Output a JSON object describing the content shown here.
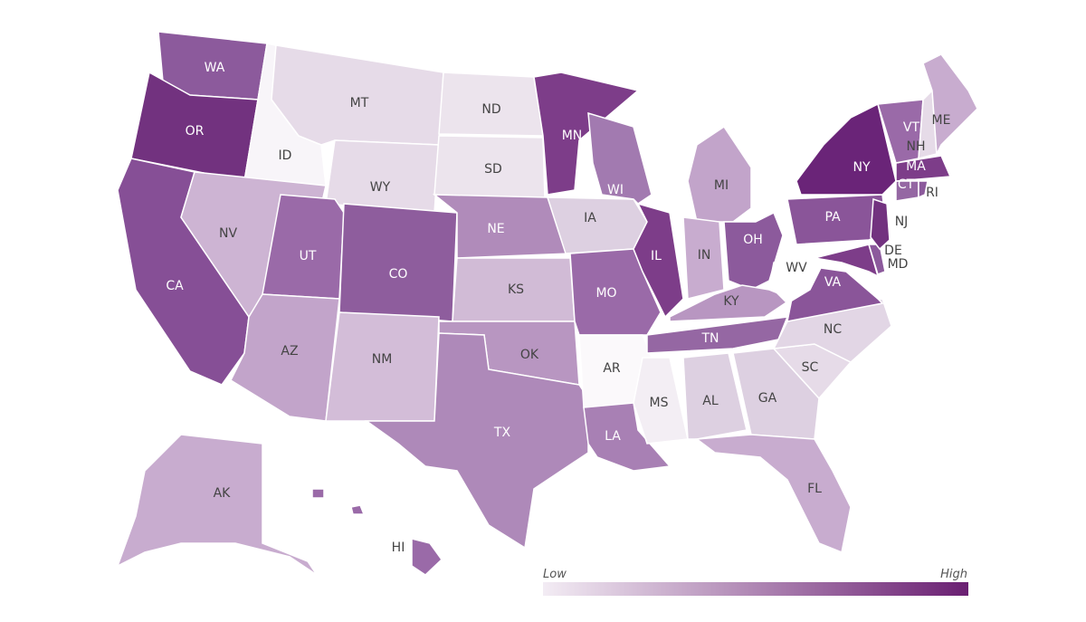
{
  "states": [
    {
      "abbr": "WA",
      "color": "#8c5a9c"
    },
    {
      "abbr": "OR",
      "color": "#72327f"
    },
    {
      "abbr": "CA",
      "color": "#864f96"
    },
    {
      "abbr": "ID",
      "color": "#f8f5f9"
    },
    {
      "abbr": "NV",
      "color": "#cdb4d3"
    },
    {
      "abbr": "MT",
      "color": "#e6dbe8"
    },
    {
      "abbr": "WY",
      "color": "#e6dbe8"
    },
    {
      "abbr": "UT",
      "color": "#9a6aa8"
    },
    {
      "abbr": "AZ",
      "color": "#c2a4ca"
    },
    {
      "abbr": "CO",
      "color": "#8e5d9d"
    },
    {
      "abbr": "NM",
      "color": "#d3bdd8"
    },
    {
      "abbr": "ND",
      "color": "#ece4ed"
    },
    {
      "abbr": "SD",
      "color": "#ece4ed"
    },
    {
      "abbr": "NE",
      "color": "#b08bba"
    },
    {
      "abbr": "KS",
      "color": "#d1bbd6"
    },
    {
      "abbr": "OK",
      "color": "#b896c1"
    },
    {
      "abbr": "TX",
      "color": "#ae89b9"
    },
    {
      "abbr": "MN",
      "color": "#7d3d89"
    },
    {
      "abbr": "IA",
      "color": "#ddd0e1"
    },
    {
      "abbr": "MO",
      "color": "#9a6aa8"
    },
    {
      "abbr": "AR",
      "color": "#fbf9fb"
    },
    {
      "abbr": "LA",
      "color": "#a880b4"
    },
    {
      "abbr": "WI",
      "color": "#a27ab0"
    },
    {
      "abbr": "IL",
      "color": "#7d3d89"
    },
    {
      "abbr": "MI",
      "color": "#c2a4ca"
    },
    {
      "abbr": "IN",
      "color": "#c8accf"
    },
    {
      "abbr": "OH",
      "color": "#8c5a9c"
    },
    {
      "abbr": "KY",
      "color": "#b896c1"
    },
    {
      "abbr": "TN",
      "color": "#9567a3"
    },
    {
      "abbr": "MS",
      "color": "#f3eef4"
    },
    {
      "abbr": "AL",
      "color": "#ddd0e1"
    },
    {
      "abbr": "GA",
      "color": "#ddd0e1"
    },
    {
      "abbr": "FL",
      "color": "#c8accf"
    },
    {
      "abbr": "SC",
      "color": "#e6dbe8"
    },
    {
      "abbr": "NC",
      "color": "#e2d6e5"
    },
    {
      "abbr": "VA",
      "color": "#8a5599"
    },
    {
      "abbr": "WV",
      "color": "#ffffff"
    },
    {
      "abbr": "PA",
      "color": "#8a5599"
    },
    {
      "abbr": "NY",
      "color": "#6a2478"
    },
    {
      "abbr": "MD",
      "color": "#7d3d89"
    },
    {
      "abbr": "DE",
      "color": "#8c5a9c"
    },
    {
      "abbr": "NJ",
      "color": "#72327f"
    },
    {
      "abbr": "CT",
      "color": "#9567a3"
    },
    {
      "abbr": "RI",
      "color": "#8c5a9c"
    },
    {
      "abbr": "MA",
      "color": "#7d3d89"
    },
    {
      "abbr": "VT",
      "color": "#9a6aa8"
    },
    {
      "abbr": "NH",
      "color": "#e6dbe8"
    },
    {
      "abbr": "ME",
      "color": "#c8accf"
    },
    {
      "abbr": "AK",
      "color": "#c8accf"
    },
    {
      "abbr": "HI",
      "color": "#9a6aa8"
    }
  ],
  "legend": {
    "low": "Low",
    "high": "High",
    "colors": [
      "#f3ecf4",
      "#6a1f72"
    ]
  }
}
